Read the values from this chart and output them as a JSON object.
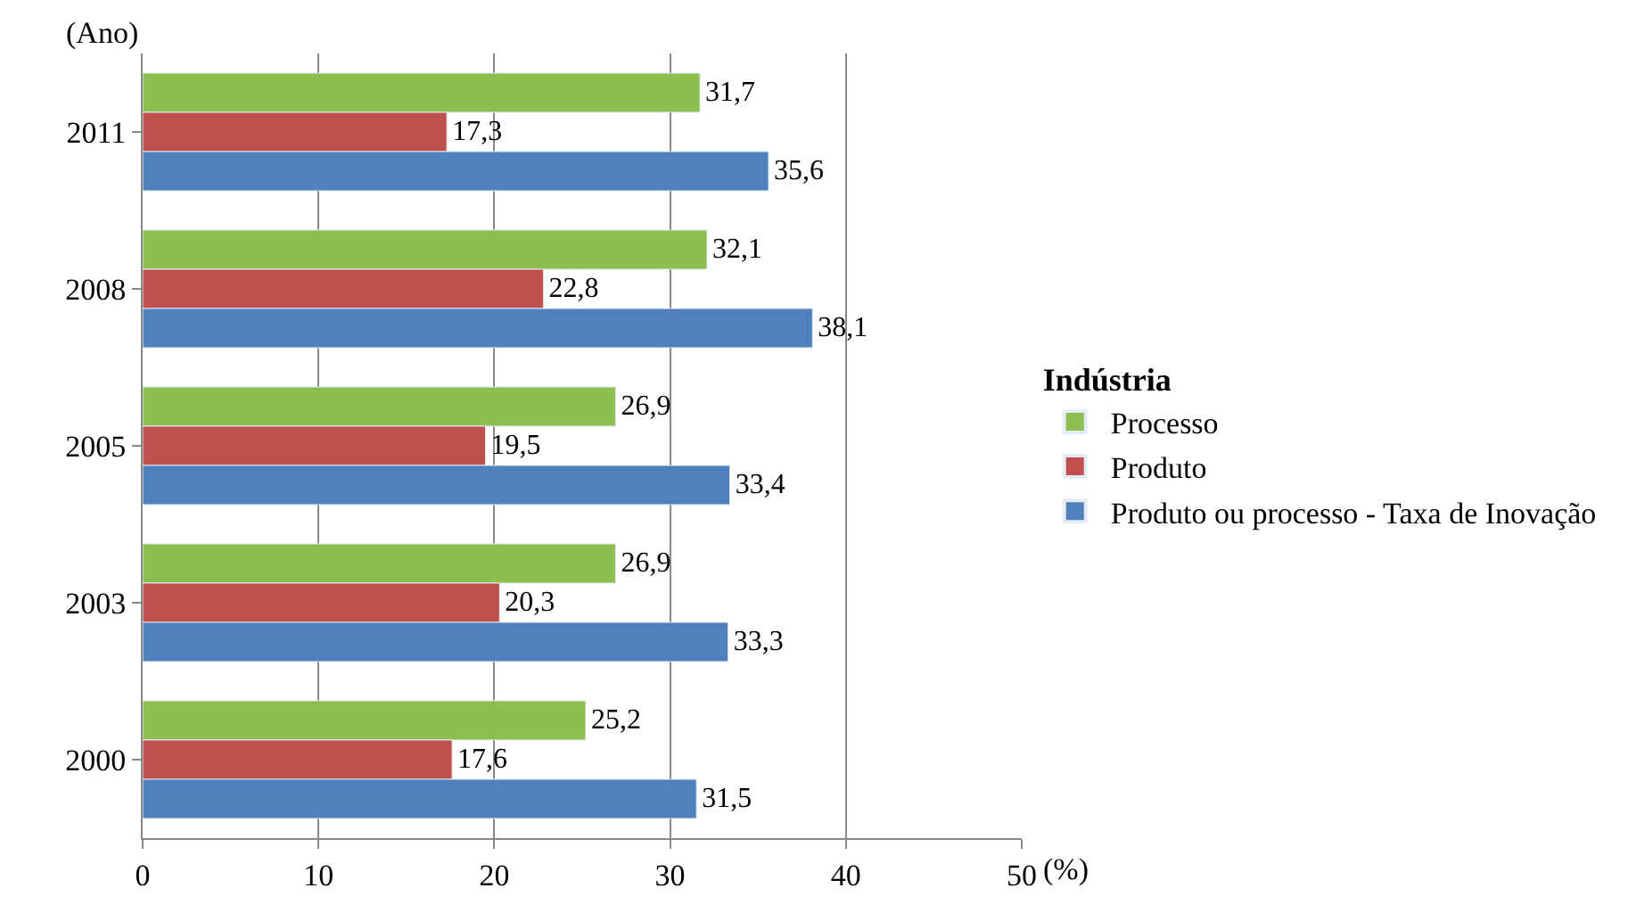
{
  "chart_data": {
    "type": "bar",
    "orientation": "horizontal",
    "ylabel": "(Ano)",
    "xlabel": "(%)",
    "legend_title": "Indústria",
    "categories": [
      "2011",
      "2008",
      "2005",
      "2003",
      "2000"
    ],
    "series": [
      {
        "name": "Processo",
        "color": "#8cbf4f",
        "values": [
          31.7,
          32.1,
          26.9,
          26.9,
          25.2
        ],
        "value_labels": [
          "31,7",
          "32,1",
          "26,9",
          "26,9",
          "25,2"
        ]
      },
      {
        "name": "Produto",
        "color": "#c0504d",
        "values": [
          17.3,
          22.8,
          19.5,
          20.3,
          17.6
        ],
        "value_labels": [
          "17,3",
          "22,8",
          "19,5",
          "20,3",
          "17,6"
        ]
      },
      {
        "name": "Produto ou processo - Taxa de Inovação",
        "color": "#4f81bd",
        "values": [
          35.6,
          38.1,
          33.4,
          33.3,
          31.5
        ],
        "value_labels": [
          "35,6",
          "38,1",
          "33,4",
          "33,3",
          "31,5"
        ]
      }
    ],
    "xlim": [
      0,
      50
    ],
    "xticks": [
      0,
      10,
      20,
      30,
      40,
      50
    ],
    "grid": "x",
    "legend": "right"
  }
}
